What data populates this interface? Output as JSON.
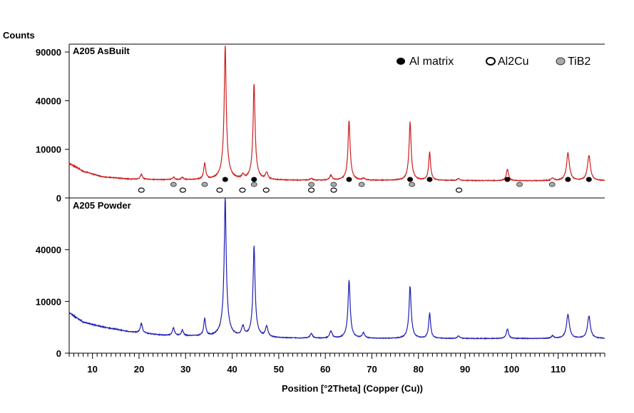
{
  "chart_data": {
    "type": "line",
    "ylabel": "Counts",
    "xlabel": "Position [°2Theta] (Copper (Cu))",
    "xlim": [
      5,
      120
    ],
    "x_ticks": [
      10,
      20,
      30,
      40,
      50,
      60,
      70,
      80,
      90,
      100,
      110
    ],
    "y_scale": "sqrt",
    "legend": {
      "position": "top-right",
      "items": [
        {
          "name": "Al matrix",
          "marker": "filled-black"
        },
        {
          "name": "Al2Cu",
          "marker": "open-black"
        },
        {
          "name": "TiB2",
          "marker": "filled-grey"
        }
      ]
    },
    "panels": [
      {
        "title": "A205 AsBuilt",
        "color": "#cc1f1f",
        "ylim": [
          0,
          100000
        ],
        "y_ticks": [
          0,
          10000,
          40000,
          90000
        ],
        "background": [
          [
            5,
            5000
          ],
          [
            8,
            3000
          ],
          [
            12,
            1900
          ],
          [
            18,
            1500
          ],
          [
            25,
            1400
          ],
          [
            40,
            1350
          ],
          [
            60,
            1300
          ],
          [
            80,
            1300
          ],
          [
            100,
            1250
          ],
          [
            120,
            1250
          ]
        ],
        "peaks": [
          {
            "x": 20.5,
            "h": 900,
            "w": 0.25
          },
          {
            "x": 27.4,
            "h": 450,
            "w": 0.25
          },
          {
            "x": 29.3,
            "h": 350,
            "w": 0.25
          },
          {
            "x": 34.1,
            "h": 3600,
            "w": 0.22
          },
          {
            "x": 38.5,
            "h": 99000,
            "w": 0.18
          },
          {
            "x": 42.3,
            "h": 700,
            "w": 0.3
          },
          {
            "x": 44.7,
            "h": 55000,
            "w": 0.18
          },
          {
            "x": 47.4,
            "h": 1300,
            "w": 0.3
          },
          {
            "x": 57.0,
            "h": 250,
            "w": 0.3
          },
          {
            "x": 61.2,
            "h": 800,
            "w": 0.3
          },
          {
            "x": 65.1,
            "h": 24000,
            "w": 0.2
          },
          {
            "x": 68.2,
            "h": 300,
            "w": 0.3
          },
          {
            "x": 78.2,
            "h": 23000,
            "w": 0.2
          },
          {
            "x": 82.4,
            "h": 7500,
            "w": 0.2
          },
          {
            "x": 88.6,
            "h": 300,
            "w": 0.3
          },
          {
            "x": 99.1,
            "h": 2200,
            "w": 0.25
          },
          {
            "x": 108.8,
            "h": 400,
            "w": 0.3
          },
          {
            "x": 112.1,
            "h": 7200,
            "w": 0.3
          },
          {
            "x": 116.6,
            "h": 6500,
            "w": 0.3
          }
        ],
        "markers": {
          "al_matrix": [
            38.5,
            44.7,
            65.1,
            78.2,
            82.4,
            99.1,
            112.1,
            116.6
          ],
          "tib2": [
            27.4,
            34.1,
            44.7,
            57.0,
            61.8,
            67.8,
            78.6,
            101.7,
            108.7
          ],
          "al2cu": [
            20.5,
            29.4,
            37.3,
            42.2,
            47.3,
            57.0,
            61.8,
            88.7
          ]
        }
      },
      {
        "title": "A205 Powder",
        "color": "#1f1fb4",
        "ylim": [
          0,
          90000
        ],
        "y_ticks": [
          0,
          10000,
          40000
        ],
        "background": [
          [
            5,
            6000
          ],
          [
            8,
            3600
          ],
          [
            12,
            2600
          ],
          [
            18,
            1700
          ],
          [
            25,
            1200
          ],
          [
            40,
            900
          ],
          [
            60,
            800
          ],
          [
            80,
            800
          ],
          [
            100,
            800
          ],
          [
            120,
            800
          ]
        ],
        "peaks": [
          {
            "x": 20.5,
            "h": 1800,
            "w": 0.25
          },
          {
            "x": 27.4,
            "h": 1200,
            "w": 0.25
          },
          {
            "x": 29.3,
            "h": 800,
            "w": 0.25
          },
          {
            "x": 34.1,
            "h": 3400,
            "w": 0.22
          },
          {
            "x": 38.5,
            "h": 89000,
            "w": 0.18
          },
          {
            "x": 42.3,
            "h": 1700,
            "w": 0.3
          },
          {
            "x": 44.7,
            "h": 43000,
            "w": 0.18
          },
          {
            "x": 47.4,
            "h": 1700,
            "w": 0.3
          },
          {
            "x": 57.0,
            "h": 600,
            "w": 0.3
          },
          {
            "x": 61.2,
            "h": 1000,
            "w": 0.3
          },
          {
            "x": 65.1,
            "h": 19000,
            "w": 0.2
          },
          {
            "x": 68.2,
            "h": 700,
            "w": 0.3
          },
          {
            "x": 78.2,
            "h": 16000,
            "w": 0.2
          },
          {
            "x": 82.4,
            "h": 5200,
            "w": 0.2
          },
          {
            "x": 88.6,
            "h": 300,
            "w": 0.3
          },
          {
            "x": 99.1,
            "h": 1400,
            "w": 0.25
          },
          {
            "x": 108.8,
            "h": 300,
            "w": 0.3
          },
          {
            "x": 112.1,
            "h": 4800,
            "w": 0.3
          },
          {
            "x": 116.6,
            "h": 4300,
            "w": 0.3
          }
        ]
      }
    ]
  }
}
